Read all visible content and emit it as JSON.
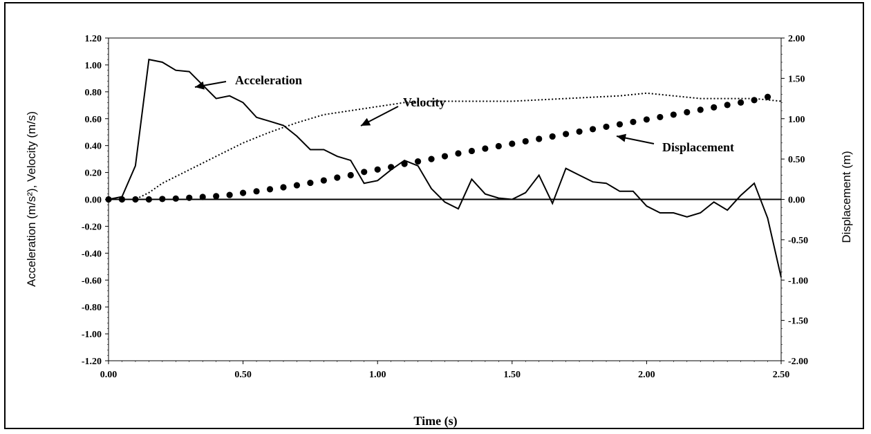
{
  "chart_data": {
    "type": "line",
    "xlabel": "Time (s)",
    "ylabel_left": "Acceleration (m/s²), Velocity (m/s)",
    "ylabel_right": "Displacement (m)",
    "xlim": [
      0,
      2.5
    ],
    "ylim_left": [
      -1.2,
      1.2
    ],
    "ylim_right": [
      -2.0,
      2.0
    ],
    "x_ticks": [
      "0.00",
      "0.50",
      "1.00",
      "1.50",
      "2.00",
      "2.50"
    ],
    "y_left_ticks": [
      "1.20",
      "1.00",
      "0.80",
      "0.60",
      "0.40",
      "0.20",
      "0.00",
      "-0.20",
      "-0.40",
      "-0.60",
      "-0.80",
      "-1.00",
      "-1.20"
    ],
    "y_right_ticks": [
      "2.00",
      "1.50",
      "1.00",
      "0.50",
      "0.00",
      "-0.50",
      "-1.00",
      "-1.50",
      "-2.00"
    ],
    "grid": false,
    "series": [
      {
        "name": "Acceleration",
        "axis": "left",
        "style": "solid",
        "color": "#000000",
        "x": [
          0.0,
          0.05,
          0.1,
          0.15,
          0.2,
          0.25,
          0.3,
          0.35,
          0.4,
          0.45,
          0.5,
          0.55,
          0.6,
          0.65,
          0.7,
          0.75,
          0.8,
          0.85,
          0.9,
          0.95,
          1.0,
          1.05,
          1.1,
          1.15,
          1.2,
          1.25,
          1.3,
          1.35,
          1.4,
          1.45,
          1.5,
          1.55,
          1.6,
          1.65,
          1.7,
          1.75,
          1.8,
          1.85,
          1.9,
          1.95,
          2.0,
          2.05,
          2.1,
          2.15,
          2.2,
          2.25,
          2.3,
          2.35,
          2.4,
          2.45,
          2.5
        ],
        "values": [
          0.0,
          0.02,
          0.25,
          1.04,
          1.02,
          0.96,
          0.95,
          0.85,
          0.75,
          0.77,
          0.72,
          0.61,
          0.58,
          0.55,
          0.47,
          0.37,
          0.37,
          0.32,
          0.29,
          0.12,
          0.14,
          0.22,
          0.29,
          0.25,
          0.08,
          -0.02,
          -0.07,
          0.15,
          0.04,
          0.01,
          0.0,
          0.05,
          0.18,
          -0.03,
          0.23,
          0.18,
          0.13,
          0.12,
          0.06,
          0.06,
          -0.05,
          -0.1,
          -0.1,
          -0.13,
          -0.1,
          -0.02,
          -0.08,
          0.03,
          0.12,
          -0.14,
          -0.58
        ]
      },
      {
        "name": "Velocity",
        "axis": "left",
        "style": "dotted",
        "color": "#000000",
        "x": [
          0.0,
          0.1,
          0.15,
          0.2,
          0.3,
          0.4,
          0.5,
          0.6,
          0.7,
          0.8,
          0.9,
          1.0,
          1.1,
          1.2,
          1.3,
          1.4,
          1.5,
          1.6,
          1.7,
          1.8,
          1.9,
          2.0,
          2.1,
          2.2,
          2.3,
          2.4,
          2.5
        ],
        "values": [
          0.0,
          0.0,
          0.05,
          0.12,
          0.22,
          0.32,
          0.42,
          0.5,
          0.57,
          0.63,
          0.66,
          0.69,
          0.72,
          0.73,
          0.73,
          0.73,
          0.73,
          0.74,
          0.75,
          0.76,
          0.77,
          0.79,
          0.77,
          0.75,
          0.75,
          0.75,
          0.73
        ]
      },
      {
        "name": "Displacement",
        "axis": "right",
        "style": "markers",
        "color": "#000000",
        "x": [
          0.0,
          0.05,
          0.1,
          0.15,
          0.2,
          0.25,
          0.3,
          0.35,
          0.4,
          0.45,
          0.5,
          0.55,
          0.6,
          0.65,
          0.7,
          0.75,
          0.8,
          0.85,
          0.9,
          0.95,
          1.0,
          1.05,
          1.1,
          1.15,
          1.2,
          1.25,
          1.3,
          1.35,
          1.4,
          1.45,
          1.5,
          1.55,
          1.6,
          1.65,
          1.7,
          1.75,
          1.8,
          1.85,
          1.9,
          1.95,
          2.0,
          2.05,
          2.1,
          2.15,
          2.2,
          2.25,
          2.3,
          2.35,
          2.4,
          2.45
        ],
        "values": [
          0.0,
          0.0,
          0.0,
          0.0,
          0.005,
          0.01,
          0.02,
          0.03,
          0.04,
          0.055,
          0.08,
          0.1,
          0.125,
          0.15,
          0.175,
          0.205,
          0.235,
          0.27,
          0.3,
          0.34,
          0.37,
          0.4,
          0.44,
          0.47,
          0.5,
          0.535,
          0.57,
          0.6,
          0.63,
          0.66,
          0.69,
          0.72,
          0.75,
          0.78,
          0.81,
          0.84,
          0.87,
          0.9,
          0.93,
          0.96,
          0.99,
          1.02,
          1.05,
          1.08,
          1.11,
          1.14,
          1.17,
          1.2,
          1.23,
          1.27
        ]
      }
    ],
    "annotations": [
      {
        "label": "Acceleration",
        "series": "Acceleration"
      },
      {
        "label": "Velocity",
        "series": "Velocity"
      },
      {
        "label": "Displacement",
        "series": "Displacement"
      }
    ]
  }
}
